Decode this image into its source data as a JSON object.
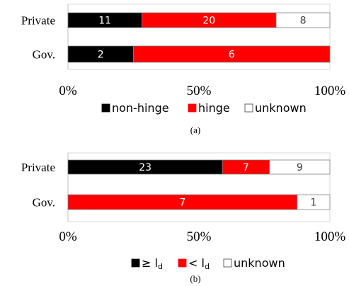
{
  "colors": {
    "non_hinge": "#000000",
    "hinge": "#ff0000",
    "unknown": "#ffffff",
    "outline": "#7f7f7f"
  },
  "chart_data": [
    {
      "type": "bar",
      "orientation": "horizontal",
      "stacked": "percent",
      "panel_label": "(a)",
      "categories": [
        "Private",
        "Gov."
      ],
      "xlim_percent": [
        0,
        100
      ],
      "x_ticks": [
        "0%",
        "50%",
        "100%"
      ],
      "series": [
        {
          "name": "non-hinge",
          "values": [
            11,
            2
          ]
        },
        {
          "name": "hinge",
          "values": [
            20,
            6
          ]
        },
        {
          "name": "unknown",
          "values": [
            8,
            0
          ]
        }
      ],
      "legend": {
        "placement": "bottom",
        "entries": [
          "non-hinge",
          "hinge",
          "unknown"
        ]
      },
      "grid": false
    },
    {
      "type": "bar",
      "orientation": "horizontal",
      "stacked": "percent",
      "panel_label": "(b)",
      "categories": [
        "Private",
        "Gov."
      ],
      "xlim_percent": [
        0,
        100
      ],
      "x_ticks": [
        "0%",
        "50%",
        "100%"
      ],
      "series": [
        {
          "name": "≥ l",
          "name_sub": "d",
          "values": [
            23,
            0
          ]
        },
        {
          "name": "< l",
          "name_sub": "d",
          "values": [
            7,
            7
          ]
        },
        {
          "name": "unknown",
          "values": [
            9,
            1
          ]
        }
      ],
      "legend": {
        "placement": "bottom",
        "entries": [
          "≥ ld",
          "< ld",
          "unknown"
        ]
      },
      "grid": false
    }
  ]
}
